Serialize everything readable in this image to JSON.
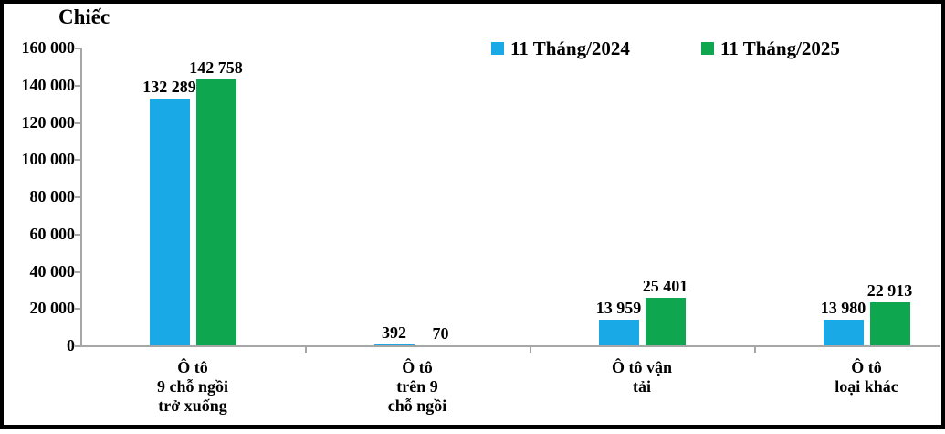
{
  "unit_label": "Chiếc",
  "frame": {
    "background": "#ffffff",
    "border_color": "#000000"
  },
  "axis_color": "#a6a6a6",
  "y_axis": {
    "ticks": [
      "160 000",
      "140 000",
      "120 000",
      "100 000",
      "80 000",
      "60 000",
      "40 000",
      "20 000",
      "0"
    ]
  },
  "chart_data": {
    "type": "bar",
    "title": "",
    "xlabel": "",
    "ylabel": "Chiếc",
    "ylim": [
      0,
      160000
    ],
    "ytick_step": 20000,
    "grid": false,
    "legend_position": "top-center",
    "categories": [
      "Ô tô\n9 chỗ ngồi\ntrở xuống",
      "Ô tô\ntrên 9\nchỗ ngồi",
      "Ô tô vận\ntải",
      "Ô tô\nloại khác"
    ],
    "series": [
      {
        "name": "11 Tháng/2024",
        "color": "#19a9e6",
        "values": [
          132289,
          392,
          13959,
          13980
        ],
        "labels": [
          "132 289",
          "392",
          "13 959",
          "13 980"
        ]
      },
      {
        "name": "11 Tháng/2025",
        "color": "#0ea750",
        "values": [
          142758,
          70,
          25401,
          22913
        ],
        "labels": [
          "142 758",
          "70",
          "25 401",
          "22 913"
        ]
      }
    ]
  }
}
